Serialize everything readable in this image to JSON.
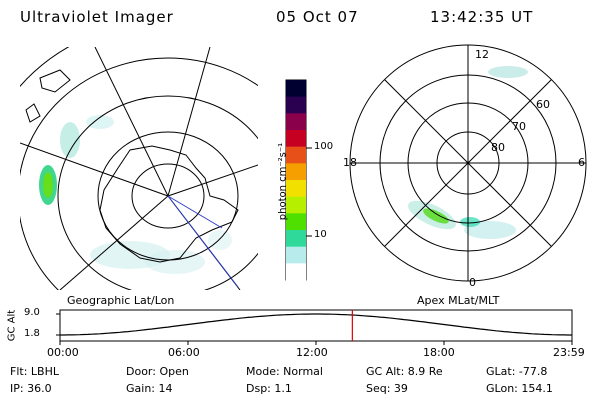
{
  "header": {
    "instrument": "Ultraviolet Imager",
    "date": "05 Oct 07",
    "time": "13:42:35 UT"
  },
  "left_panel": {
    "label": "Geographic Lat/Lon"
  },
  "right_panel": {
    "label": "Apex MLat/MLT",
    "mlt_labels": [
      "12",
      "18",
      "6",
      "0"
    ],
    "mlat_labels": [
      "60",
      "70",
      "80"
    ]
  },
  "colorbar": {
    "unit_label": "photon cm⁻²s⁻¹",
    "ticks": [
      "100",
      "10"
    ],
    "colors": [
      "#000030",
      "#2a0050",
      "#8b004a",
      "#c60020",
      "#e8501a",
      "#f5a000",
      "#f2e000",
      "#b6ef00",
      "#4fe000",
      "#2fd99a",
      "#b8ecec",
      "#ffffff"
    ]
  },
  "altitude_plot": {
    "ylabel": "GC Alt",
    "yticks": [
      "9.0",
      "1.8"
    ],
    "xticks": [
      "00:00",
      "06:00",
      "12:00",
      "18:00",
      "23:59"
    ],
    "current_time_fraction": 0.571
  },
  "footer": {
    "filter": "Flt: LBHL",
    "ip": "IP: 36.0",
    "door": "Door: Open",
    "gain": "Gain: 14",
    "mode": "Mode: Normal",
    "dsp": "Dsp:    1.1",
    "gc_alt": "GC Alt: 8.9 Re",
    "seq": "Seq: 39",
    "glat": "GLat: -77.8",
    "glon": "GLon: 154.1"
  }
}
